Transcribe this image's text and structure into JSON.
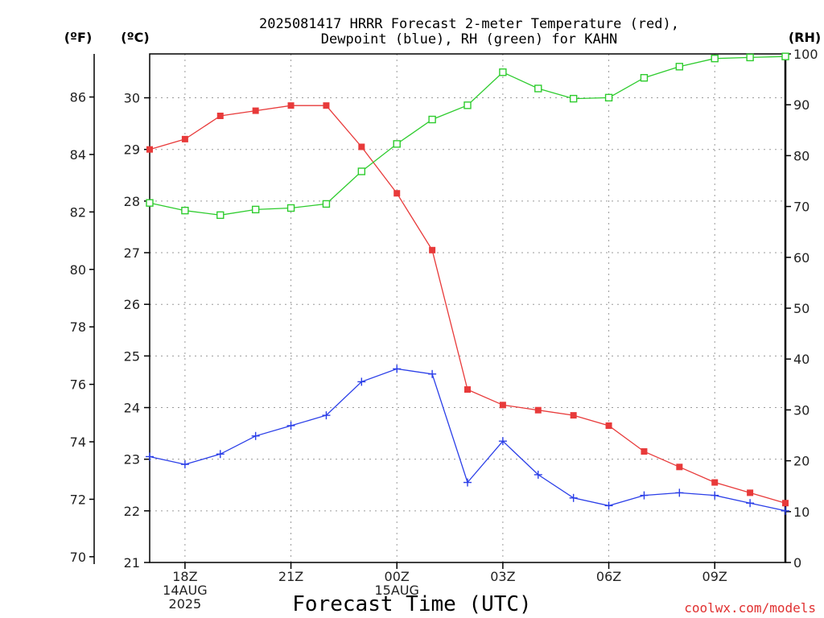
{
  "chart_data": {
    "type": "line",
    "title_line1": "2025081417 HRRR Forecast 2-meter Temperature (red),",
    "title_line2": "Dewpoint (blue), RH (green) for KAHN",
    "xlabel": "Forecast Time (UTC)",
    "credit": "coolwx.com/models",
    "axes": {
      "left_f": {
        "unit_label": "(ºF)",
        "ticks": [
          "70",
          "72",
          "74",
          "76",
          "78",
          "80",
          "82",
          "84",
          "86"
        ],
        "range": [
          69.8,
          87.5
        ]
      },
      "left_c": {
        "unit_label": "(ºC)",
        "ticks": [
          "21",
          "22",
          "23",
          "24",
          "25",
          "26",
          "27",
          "28",
          "29",
          "30"
        ],
        "range": [
          21,
          30.85
        ]
      },
      "right_rh": {
        "unit_label": "(RH)",
        "ticks": [
          "0",
          "10",
          "20",
          "30",
          "40",
          "50",
          "60",
          "70",
          "80",
          "90",
          "100"
        ],
        "range": [
          0,
          100
        ]
      }
    },
    "x_ticks": [
      {
        "hour": 18,
        "lines": [
          "18Z",
          "14AUG",
          "2025"
        ]
      },
      {
        "hour": 21,
        "lines": [
          "21Z"
        ]
      },
      {
        "hour": 24,
        "lines": [
          "00Z",
          "15AUG"
        ]
      },
      {
        "hour": 27,
        "lines": [
          "03Z"
        ]
      },
      {
        "hour": 30,
        "lines": [
          "06Z"
        ]
      },
      {
        "hour": 33,
        "lines": [
          "09Z"
        ]
      }
    ],
    "x_range": [
      17,
      35
    ],
    "grid": true,
    "series": [
      {
        "key": "temperature",
        "axis": "c",
        "color": "#e83a3a",
        "marker": "filled-square",
        "x": [
          17,
          18,
          19,
          20,
          21,
          22,
          23,
          24,
          25,
          26,
          27,
          28,
          29,
          30,
          31,
          32,
          33,
          34,
          35
        ],
        "values": [
          29.0,
          29.2,
          29.65,
          29.75,
          29.85,
          29.85,
          29.05,
          28.15,
          27.05,
          24.35,
          24.05,
          23.95,
          23.85,
          23.65,
          23.15,
          22.85,
          22.55,
          22.35,
          22.15
        ]
      },
      {
        "key": "dewpoint",
        "axis": "c",
        "color": "#2a3ee8",
        "marker": "plus",
        "x": [
          17,
          18,
          19,
          20,
          21,
          22,
          23,
          24,
          25,
          26,
          27,
          28,
          29,
          30,
          31,
          32,
          33,
          34,
          35
        ],
        "values": [
          23.05,
          22.9,
          23.1,
          23.45,
          23.65,
          23.85,
          24.5,
          24.75,
          24.65,
          22.55,
          23.35,
          22.7,
          22.25,
          22.1,
          22.3,
          22.35,
          22.3,
          22.15,
          22.0
        ]
      },
      {
        "key": "rh",
        "axis": "rh",
        "color": "#2ecc2e",
        "marker": "open-square",
        "x": [
          17,
          18,
          19,
          20,
          21,
          22,
          23,
          24,
          25,
          26,
          27,
          28,
          29,
          30,
          31,
          32,
          33,
          34,
          35
        ],
        "values": [
          70.7,
          69.2,
          68.3,
          69.4,
          69.7,
          70.5,
          76.9,
          82.3,
          87.1,
          89.9,
          96.4,
          93.2,
          91.2,
          91.4,
          95.3,
          97.5,
          99.1,
          99.3,
          99.5
        ]
      }
    ]
  }
}
